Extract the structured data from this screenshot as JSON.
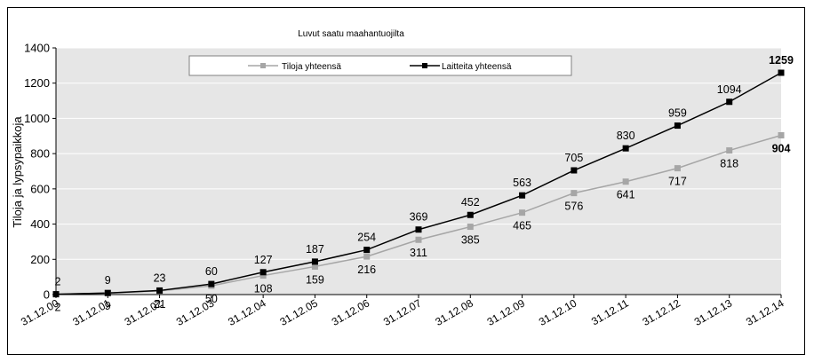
{
  "chart_data": {
    "type": "line",
    "title": "Luvut saatu maahantuojilta",
    "xlabel": "",
    "ylabel": "Tiloja ja lypsypaikkoja",
    "ylim": [
      0,
      1400
    ],
    "yticks": [
      0,
      200,
      400,
      600,
      800,
      1000,
      1200,
      1400
    ],
    "categories": [
      "31.12.00",
      "31.12.01",
      "31.12.02",
      "31.12.03",
      "31.12.04",
      "31.12.05",
      "31.12.06",
      "31.12.07",
      "31.12.08",
      "31.12.09",
      "31.12.10",
      "31.12.11",
      "31.12.12",
      "31.12.13",
      "31.12.14"
    ],
    "legend_position": "top",
    "grid": "horizontal",
    "series": [
      {
        "name": "Tiloja yhteensä",
        "color": "#a6a6a6",
        "marker": "square",
        "values": [
          2,
          9,
          21,
          50,
          108,
          159,
          216,
          311,
          385,
          465,
          576,
          641,
          717,
          818,
          904
        ]
      },
      {
        "name": "Laitteita yhteensä",
        "color": "#000000",
        "marker": "square",
        "values": [
          2,
          9,
          23,
          60,
          127,
          187,
          254,
          369,
          452,
          563,
          705,
          830,
          959,
          1094,
          1259
        ]
      }
    ]
  }
}
